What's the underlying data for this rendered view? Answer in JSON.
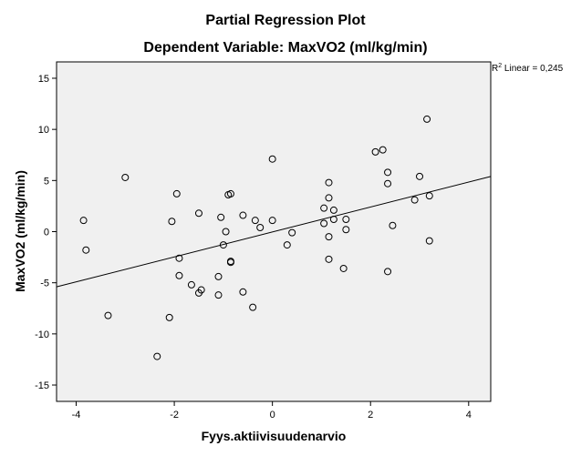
{
  "chart_data": {
    "type": "scatter",
    "title": "Partial Regression Plot",
    "subtitle": "Dependent Variable: MaxVO2 (ml/kg/min)",
    "xlabel": "Fyys.aktiivisuudenarvio",
    "ylabel": "MaxVO2 (ml/kg/min)",
    "xlim": [
      -4.4,
      4.45
    ],
    "ylim": [
      -16.6,
      16.6
    ],
    "xticks": [
      -4,
      -2,
      0,
      2,
      4
    ],
    "yticks": [
      -15,
      -10,
      -5,
      0,
      5,
      10,
      15
    ],
    "x_tick_labels": [
      "-4",
      "-2",
      "0",
      "2",
      "4"
    ],
    "y_tick_labels": [
      "-15",
      "-10",
      "-5",
      "0",
      "5",
      "10",
      "15"
    ],
    "grid": false,
    "fit_line": {
      "y_at_xmin": -5.4,
      "y_at_xmax": 5.4
    },
    "annotation": {
      "r_label": "R",
      "r_sup": "2",
      "text": " Linear = 0,245"
    },
    "colors": {
      "plot_background": "#f0f0f0",
      "marker_stroke": "#000000",
      "fit_line": "#000000"
    },
    "points": [
      {
        "x": -3.85,
        "y": 1.1
      },
      {
        "x": -3.8,
        "y": -1.8
      },
      {
        "x": -3.35,
        "y": -8.2
      },
      {
        "x": -3.0,
        "y": 5.3
      },
      {
        "x": -2.35,
        "y": -12.2
      },
      {
        "x": -2.1,
        "y": -8.4
      },
      {
        "x": -2.05,
        "y": 1.0
      },
      {
        "x": -1.95,
        "y": 3.7
      },
      {
        "x": -1.9,
        "y": -2.6
      },
      {
        "x": -1.9,
        "y": -4.3
      },
      {
        "x": -1.65,
        "y": -5.2
      },
      {
        "x": -1.5,
        "y": 1.8
      },
      {
        "x": -1.5,
        "y": -6.0
      },
      {
        "x": -1.45,
        "y": -5.7
      },
      {
        "x": -1.1,
        "y": -4.4
      },
      {
        "x": -1.1,
        "y": -6.2
      },
      {
        "x": -1.05,
        "y": 1.4
      },
      {
        "x": -1.0,
        "y": -1.3
      },
      {
        "x": -0.95,
        "y": 0.0
      },
      {
        "x": -0.9,
        "y": 3.6
      },
      {
        "x": -0.85,
        "y": 3.7
      },
      {
        "x": -0.85,
        "y": -2.9
      },
      {
        "x": -0.85,
        "y": -3.0
      },
      {
        "x": -0.6,
        "y": 1.6
      },
      {
        "x": -0.6,
        "y": -5.9
      },
      {
        "x": -0.4,
        "y": -7.4
      },
      {
        "x": -0.35,
        "y": 1.1
      },
      {
        "x": -0.25,
        "y": 0.4
      },
      {
        "x": 0.0,
        "y": 1.1
      },
      {
        "x": 0.0,
        "y": 7.1
      },
      {
        "x": 0.3,
        "y": -1.3
      },
      {
        "x": 0.4,
        "y": -0.1
      },
      {
        "x": 1.05,
        "y": 2.3
      },
      {
        "x": 1.05,
        "y": 0.8
      },
      {
        "x": 1.15,
        "y": 4.8
      },
      {
        "x": 1.15,
        "y": 3.3
      },
      {
        "x": 1.15,
        "y": -0.5
      },
      {
        "x": 1.15,
        "y": -2.7
      },
      {
        "x": 1.25,
        "y": 2.1
      },
      {
        "x": 1.25,
        "y": 1.2
      },
      {
        "x": 1.45,
        "y": -3.6
      },
      {
        "x": 1.5,
        "y": 1.2
      },
      {
        "x": 1.5,
        "y": 0.2
      },
      {
        "x": 2.1,
        "y": 7.8
      },
      {
        "x": 2.25,
        "y": 8.0
      },
      {
        "x": 2.35,
        "y": 5.8
      },
      {
        "x": 2.35,
        "y": 4.7
      },
      {
        "x": 2.35,
        "y": -3.9
      },
      {
        "x": 2.45,
        "y": 0.6
      },
      {
        "x": 2.9,
        "y": 3.1
      },
      {
        "x": 3.0,
        "y": 5.4
      },
      {
        "x": 3.15,
        "y": 11.0
      },
      {
        "x": 3.2,
        "y": 3.5
      },
      {
        "x": 3.2,
        "y": -0.9
      }
    ]
  }
}
